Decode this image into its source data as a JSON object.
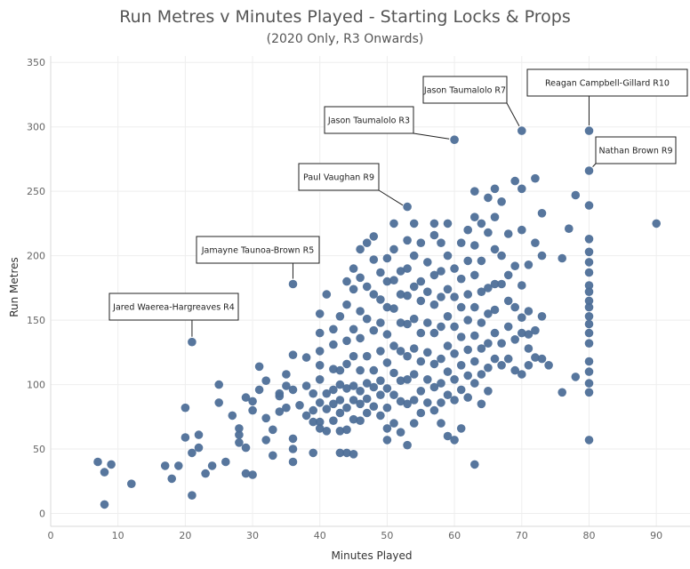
{
  "chart_data": {
    "type": "scatter",
    "title": "Run Metres v Minutes Played - Starting Locks & Props",
    "subtitle": "(2020 Only, R3 Onwards)",
    "xlabel": "Minutes Played",
    "ylabel": "Run Metres",
    "xlim": [
      0,
      95
    ],
    "ylim": [
      -10,
      355
    ],
    "xticks": [
      "0",
      "10",
      "20",
      "30",
      "40",
      "50",
      "60",
      "70",
      "80",
      "90"
    ],
    "yticks": [
      "0",
      "50",
      "100",
      "150",
      "200",
      "250",
      "300",
      "350"
    ],
    "grid": true,
    "marker_color": "#4e6f98",
    "annotations": [
      {
        "label": "Reagan Campbell-Gillard R10",
        "x": 80,
        "y": 297
      },
      {
        "label": "Jason Taumalolo R7",
        "x": 70,
        "y": 297
      },
      {
        "label": "Jason Taumalolo R3",
        "x": 60,
        "y": 290
      },
      {
        "label": "Nathan Brown R9",
        "x": 80,
        "y": 266
      },
      {
        "label": "Paul Vaughan R9",
        "x": 53,
        "y": 237
      },
      {
        "label": "Jamayne Taunoa-Brown R5",
        "x": 36,
        "y": 178
      },
      {
        "label": "Jared Waerea-Hargreaves R4",
        "x": 21,
        "y": 133
      }
    ],
    "points": [
      [
        7,
        40
      ],
      [
        8,
        32
      ],
      [
        9,
        38
      ],
      [
        8,
        7
      ],
      [
        12,
        23
      ],
      [
        17,
        37
      ],
      [
        18,
        27
      ],
      [
        19,
        37
      ],
      [
        20,
        59
      ],
      [
        21,
        47
      ],
      [
        22,
        61
      ],
      [
        21,
        14
      ],
      [
        22,
        51
      ],
      [
        23,
        31
      ],
      [
        24,
        37
      ],
      [
        20,
        82
      ],
      [
        25,
        100
      ],
      [
        25,
        86
      ],
      [
        26,
        40
      ],
      [
        27,
        76
      ],
      [
        28,
        61
      ],
      [
        28,
        66
      ],
      [
        29,
        31
      ],
      [
        30,
        30
      ],
      [
        29,
        51
      ],
      [
        28,
        55
      ],
      [
        29,
        90
      ],
      [
        30,
        80
      ],
      [
        30,
        87
      ],
      [
        31,
        114
      ],
      [
        31,
        96
      ],
      [
        32,
        103
      ],
      [
        32,
        74
      ],
      [
        32,
        57
      ],
      [
        33,
        65
      ],
      [
        33,
        45
      ],
      [
        34,
        93
      ],
      [
        34,
        79
      ],
      [
        34,
        91
      ],
      [
        35,
        108
      ],
      [
        35,
        99
      ],
      [
        35,
        82
      ],
      [
        36,
        123
      ],
      [
        36,
        96
      ],
      [
        36,
        50
      ],
      [
        36,
        58
      ],
      [
        36,
        40
      ],
      [
        37,
        84
      ],
      [
        38,
        76
      ],
      [
        38,
        121
      ],
      [
        38,
        99
      ],
      [
        39,
        93
      ],
      [
        39,
        80
      ],
      [
        39,
        71
      ],
      [
        39,
        47
      ],
      [
        40,
        71
      ],
      [
        40,
        66
      ],
      [
        40,
        86
      ],
      [
        40,
        104
      ],
      [
        40,
        115
      ],
      [
        40,
        126
      ],
      [
        40,
        140
      ],
      [
        40,
        155
      ],
      [
        41,
        93
      ],
      [
        41,
        81
      ],
      [
        41,
        64
      ],
      [
        41,
        170
      ],
      [
        42,
        143
      ],
      [
        42,
        131
      ],
      [
        42,
        112
      ],
      [
        42,
        96
      ],
      [
        42,
        85
      ],
      [
        42,
        72
      ],
      [
        43,
        64
      ],
      [
        43,
        153
      ],
      [
        43,
        111
      ],
      [
        43,
        100
      ],
      [
        43,
        88
      ],
      [
        43,
        78
      ],
      [
        43,
        47
      ],
      [
        44,
        180
      ],
      [
        44,
        162
      ],
      [
        44,
        134
      ],
      [
        44,
        116
      ],
      [
        44,
        97
      ],
      [
        44,
        82
      ],
      [
        44,
        65
      ],
      [
        44,
        47
      ],
      [
        45,
        190
      ],
      [
        45,
        174
      ],
      [
        45,
        143
      ],
      [
        45,
        122
      ],
      [
        45,
        99
      ],
      [
        45,
        88
      ],
      [
        45,
        73
      ],
      [
        45,
        46
      ],
      [
        46,
        205
      ],
      [
        46,
        183
      ],
      [
        46,
        157
      ],
      [
        46,
        136
      ],
      [
        46,
        111
      ],
      [
        46,
        95
      ],
      [
        46,
        85
      ],
      [
        46,
        72
      ],
      [
        47,
        210
      ],
      [
        47,
        176
      ],
      [
        47,
        151
      ],
      [
        47,
        122
      ],
      [
        47,
        101
      ],
      [
        47,
        89
      ],
      [
        47,
        78
      ],
      [
        48,
        215
      ],
      [
        48,
        197
      ],
      [
        48,
        170
      ],
      [
        48,
        142
      ],
      [
        48,
        111
      ],
      [
        48,
        98
      ],
      [
        48,
        83
      ],
      [
        49,
        187
      ],
      [
        49,
        166
      ],
      [
        49,
        148
      ],
      [
        49,
        126
      ],
      [
        49,
        103
      ],
      [
        49,
        92
      ],
      [
        49,
        76
      ],
      [
        50,
        198
      ],
      [
        50,
        180
      ],
      [
        50,
        160
      ],
      [
        50,
        139
      ],
      [
        50,
        117
      ],
      [
        50,
        97
      ],
      [
        50,
        82
      ],
      [
        50,
        66
      ],
      [
        50,
        57
      ],
      [
        51,
        225
      ],
      [
        51,
        205
      ],
      [
        51,
        181
      ],
      [
        51,
        159
      ],
      [
        51,
        130
      ],
      [
        51,
        109
      ],
      [
        51,
        92
      ],
      [
        51,
        70
      ],
      [
        52,
        188
      ],
      [
        52,
        170
      ],
      [
        52,
        148
      ],
      [
        52,
        126
      ],
      [
        52,
        103
      ],
      [
        52,
        87
      ],
      [
        52,
        63
      ],
      [
        53,
        238
      ],
      [
        53,
        212
      ],
      [
        53,
        190
      ],
      [
        53,
        169
      ],
      [
        53,
        147
      ],
      [
        53,
        122
      ],
      [
        53,
        104
      ],
      [
        53,
        85
      ],
      [
        53,
        53
      ],
      [
        54,
        225
      ],
      [
        54,
        200
      ],
      [
        54,
        176
      ],
      [
        54,
        151
      ],
      [
        54,
        128
      ],
      [
        54,
        108
      ],
      [
        54,
        88
      ],
      [
        54,
        70
      ],
      [
        55,
        210
      ],
      [
        55,
        180
      ],
      [
        55,
        165
      ],
      [
        55,
        140
      ],
      [
        55,
        118
      ],
      [
        55,
        95
      ],
      [
        55,
        78
      ],
      [
        56,
        195
      ],
      [
        56,
        172
      ],
      [
        56,
        148
      ],
      [
        56,
        125
      ],
      [
        56,
        104
      ],
      [
        56,
        86
      ],
      [
        57,
        225
      ],
      [
        57,
        216
      ],
      [
        57,
        185
      ],
      [
        57,
        162
      ],
      [
        57,
        140
      ],
      [
        57,
        116
      ],
      [
        57,
        98
      ],
      [
        57,
        80
      ],
      [
        58,
        210
      ],
      [
        58,
        188
      ],
      [
        58,
        168
      ],
      [
        58,
        145
      ],
      [
        58,
        120
      ],
      [
        58,
        101
      ],
      [
        58,
        86
      ],
      [
        58,
        70
      ],
      [
        59,
        225
      ],
      [
        59,
        200
      ],
      [
        59,
        174
      ],
      [
        59,
        153
      ],
      [
        59,
        130
      ],
      [
        59,
        110
      ],
      [
        59,
        92
      ],
      [
        59,
        60
      ],
      [
        60,
        290
      ],
      [
        60,
        190
      ],
      [
        60,
        168
      ],
      [
        60,
        145
      ],
      [
        60,
        124
      ],
      [
        60,
        104
      ],
      [
        60,
        88
      ],
      [
        60,
        57
      ],
      [
        61,
        210
      ],
      [
        61,
        182
      ],
      [
        61,
        160
      ],
      [
        61,
        137
      ],
      [
        61,
        115
      ],
      [
        61,
        96
      ],
      [
        61,
        66
      ],
      [
        62,
        220
      ],
      [
        62,
        196
      ],
      [
        62,
        170
      ],
      [
        62,
        150
      ],
      [
        62,
        127
      ],
      [
        62,
        107
      ],
      [
        62,
        90
      ],
      [
        63,
        250
      ],
      [
        63,
        230
      ],
      [
        63,
        208
      ],
      [
        63,
        185
      ],
      [
        63,
        160
      ],
      [
        63,
        138
      ],
      [
        63,
        118
      ],
      [
        63,
        101
      ],
      [
        63,
        38
      ],
      [
        64,
        225
      ],
      [
        64,
        196
      ],
      [
        64,
        172
      ],
      [
        64,
        148
      ],
      [
        64,
        128
      ],
      [
        64,
        108
      ],
      [
        64,
        85
      ],
      [
        65,
        245
      ],
      [
        65,
        218
      ],
      [
        65,
        175
      ],
      [
        65,
        155
      ],
      [
        65,
        132
      ],
      [
        65,
        113
      ],
      [
        65,
        95
      ],
      [
        66,
        252
      ],
      [
        66,
        230
      ],
      [
        66,
        205
      ],
      [
        66,
        178
      ],
      [
        66,
        158
      ],
      [
        66,
        140
      ],
      [
        66,
        120
      ],
      [
        67,
        242
      ],
      [
        67,
        200
      ],
      [
        67,
        178
      ],
      [
        67,
        132
      ],
      [
        67,
        115
      ],
      [
        68,
        217
      ],
      [
        68,
        185
      ],
      [
        68,
        165
      ],
      [
        68,
        145
      ],
      [
        68,
        120
      ],
      [
        69,
        258
      ],
      [
        69,
        192
      ],
      [
        69,
        160
      ],
      [
        69,
        135
      ],
      [
        69,
        111
      ],
      [
        70,
        297
      ],
      [
        70,
        252
      ],
      [
        70,
        220
      ],
      [
        70,
        177
      ],
      [
        70,
        152
      ],
      [
        70,
        140
      ],
      [
        70,
        108
      ],
      [
        71,
        193
      ],
      [
        71,
        157
      ],
      [
        71,
        139
      ],
      [
        71,
        128
      ],
      [
        71,
        115
      ],
      [
        72,
        260
      ],
      [
        72,
        210
      ],
      [
        72,
        142
      ],
      [
        72,
        121
      ],
      [
        73,
        233
      ],
      [
        73,
        200
      ],
      [
        73,
        153
      ],
      [
        73,
        120
      ],
      [
        74,
        115
      ],
      [
        76,
        198
      ],
      [
        76,
        94
      ],
      [
        77,
        221
      ],
      [
        78,
        247
      ],
      [
        78,
        106
      ],
      [
        80,
        297
      ],
      [
        80,
        266
      ],
      [
        80,
        239
      ],
      [
        80,
        213
      ],
      [
        80,
        203
      ],
      [
        80,
        195
      ],
      [
        80,
        187
      ],
      [
        80,
        177
      ],
      [
        80,
        172
      ],
      [
        80,
        165
      ],
      [
        80,
        160
      ],
      [
        80,
        153
      ],
      [
        80,
        147
      ],
      [
        80,
        140
      ],
      [
        80,
        132
      ],
      [
        80,
        118
      ],
      [
        80,
        110
      ],
      [
        80,
        101
      ],
      [
        80,
        94
      ],
      [
        80,
        57
      ],
      [
        90,
        225
      ],
      [
        21,
        133
      ],
      [
        36,
        178
      ]
    ]
  }
}
